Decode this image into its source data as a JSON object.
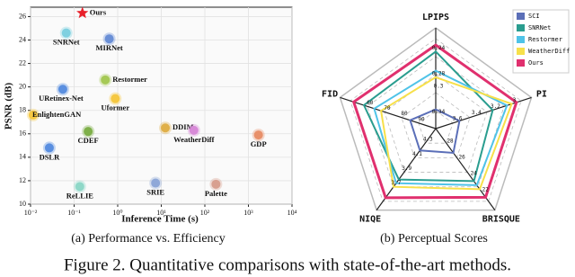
{
  "chart_data": [
    {
      "type": "scatter",
      "caption": "(a) Performance vs. Efficiency",
      "x_label": "Inference Time (s)",
      "y_label": "PSNR (dB)",
      "log_x": true,
      "grid": true,
      "labels": [
        "Ours",
        "SNRNet",
        "MIRNet",
        "Restormer",
        "URetinex-Net",
        "Uformer",
        "EnlightenGAN",
        "CDEF",
        "DDIM",
        "WeatherDiff",
        "GDP",
        "DSLR",
        "ReLLIE",
        "SRIE",
        "Palette"
      ],
      "x": [
        0.155,
        0.066,
        0.64,
        0.52,
        0.055,
        0.88,
        0.0115,
        0.21,
        12.4,
        56,
        1700,
        0.027,
        0.135,
        7.4,
        180
      ],
      "y": [
        26.3,
        24.6,
        24.1,
        20.6,
        19.8,
        19.0,
        17.6,
        16.2,
        16.5,
        16.3,
        15.9,
        14.8,
        11.5,
        11.8,
        11.7
      ],
      "colors": [
        "#e8202a",
        "#7fd0e0",
        "#6a8fd6",
        "#a6c956",
        "#5a8fe0",
        "#f5c842",
        "#f5c842",
        "#7fb04a",
        "#e0b04a",
        "#d88ad8",
        "#e8906a",
        "#5a8fe0",
        "#8fd8c8",
        "#8fa8d8",
        "#d8a090"
      ],
      "xlim": [
        0.01,
        10000
      ],
      "ylim": [
        10,
        26.8
      ],
      "xticks": [
        {
          "value": 0.01,
          "label": "10⁻²"
        },
        {
          "value": 0.1,
          "label": "10⁻¹"
        },
        {
          "value": 1,
          "label": "10⁰"
        },
        {
          "value": 10,
          "label": "10¹"
        },
        {
          "value": 100,
          "label": "10²"
        },
        {
          "value": 1000,
          "label": "10³"
        },
        {
          "value": 10000,
          "label": "10⁴"
        }
      ],
      "yticks": [
        10,
        12,
        14,
        16,
        18,
        20,
        22,
        24,
        26
      ]
    },
    {
      "type": "radar",
      "caption": "(b) Perceptual Scores",
      "axes": [
        {
          "name": "LPIPS",
          "lim": [
            0.36,
            0.22
          ],
          "ticks": [
            0.34,
            0.3,
            0.28,
            0.24
          ]
        },
        {
          "name": "PI",
          "lim": [
            3.8,
            2.9
          ],
          "ticks": [
            3.6,
            3.4,
            3.2,
            3.0
          ]
        },
        {
          "name": "BRISQUE",
          "lim": [
            30,
            21
          ],
          "ticks": [
            28,
            26,
            24,
            22
          ]
        },
        {
          "name": "NIQE",
          "lim": [
            4.5,
            3.5
          ],
          "ticks": [
            4.3,
            4.1,
            3.9,
            3.7
          ]
        },
        {
          "name": "FID",
          "lim": [
            100,
            50
          ],
          "ticks": [
            90,
            80,
            70,
            60
          ]
        }
      ],
      "series": [
        {
          "name": "SCI",
          "color": "#5b6fb8",
          "values": [
            0.33,
            3.55,
            27,
            4.2,
            85
          ]
        },
        {
          "name": "SNRNet",
          "color": "#2a9d8f",
          "values": [
            0.24,
            3.2,
            23.5,
            3.8,
            58
          ]
        },
        {
          "name": "Restormer",
          "color": "#4fc3e8",
          "values": [
            0.27,
            3.05,
            23,
            3.75,
            64
          ]
        },
        {
          "name": "WeatherDiff",
          "color": "#f7e04a",
          "values": [
            0.28,
            3.0,
            22.5,
            3.7,
            68
          ]
        },
        {
          "name": "Ours",
          "color": "#e0306e",
          "values": [
            0.23,
            2.95,
            21.5,
            3.55,
            52
          ]
        }
      ]
    }
  ],
  "figure_caption": "Figure 2. Quantitative comparisons with state-of-the-art methods."
}
